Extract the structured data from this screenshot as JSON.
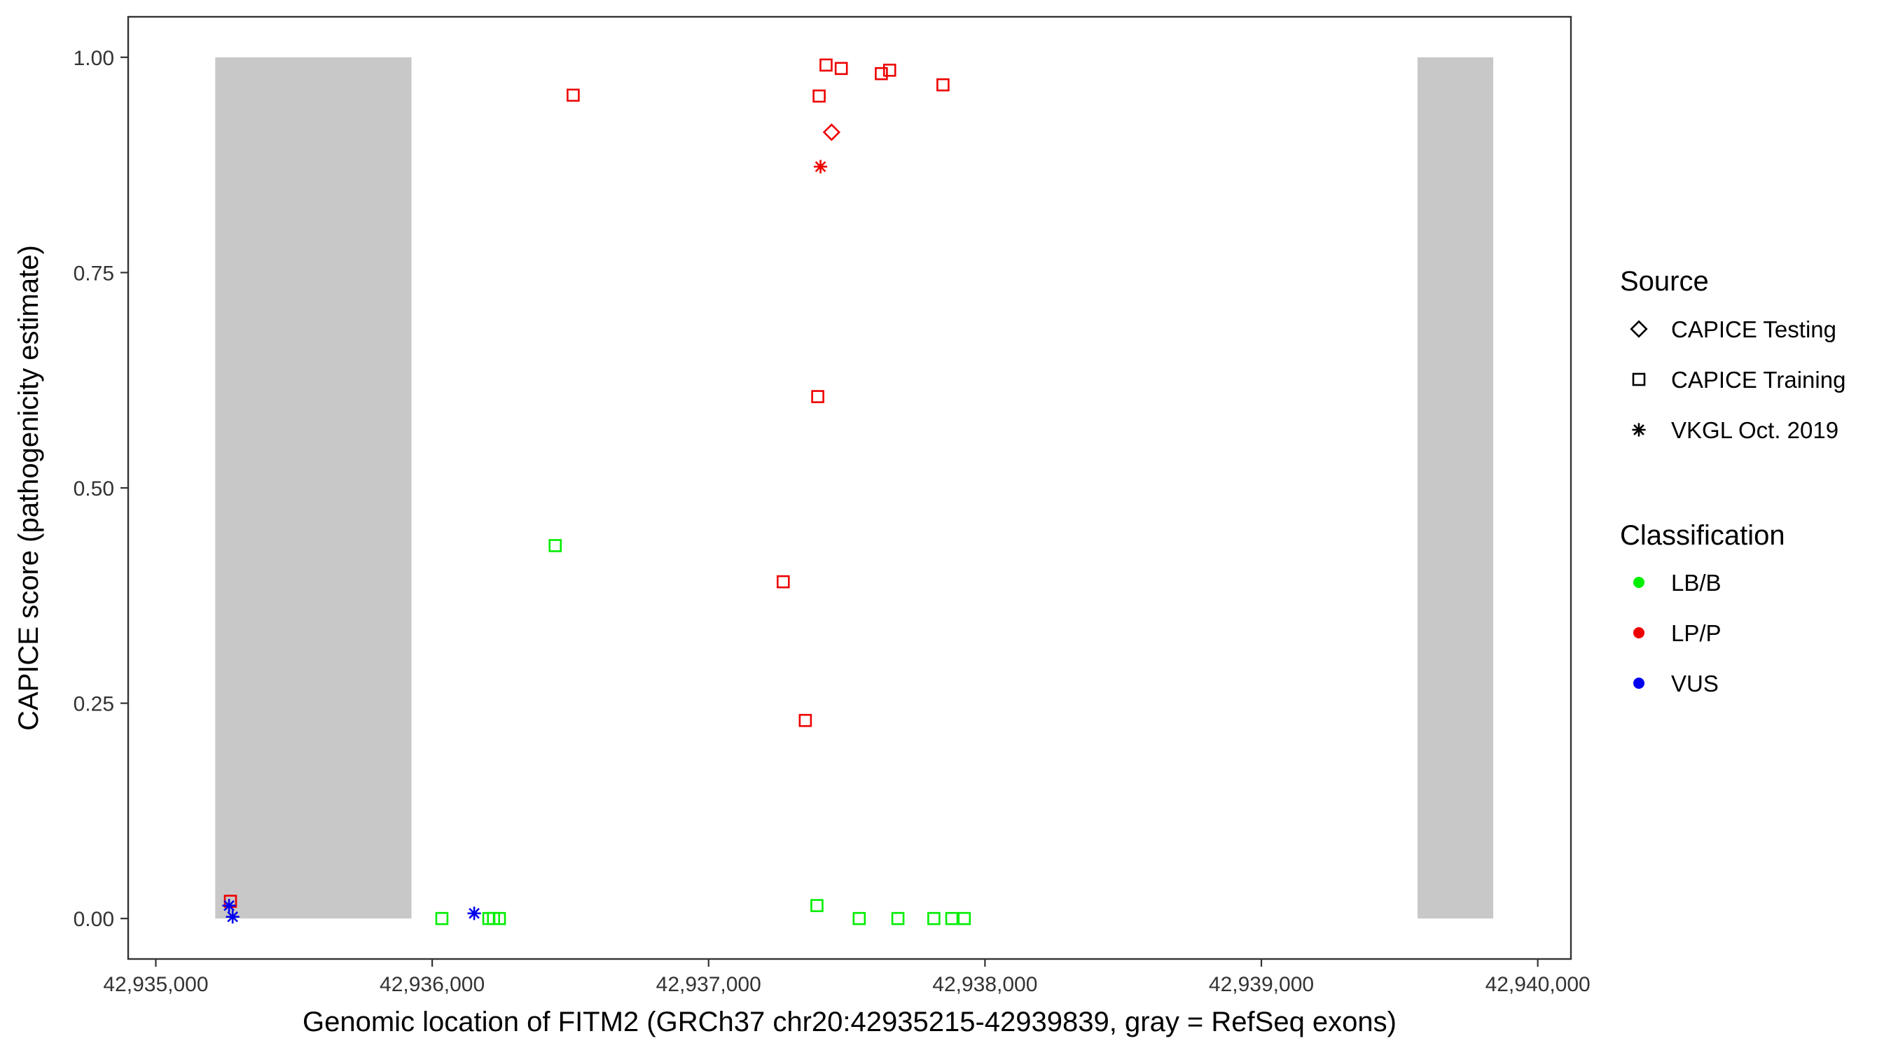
{
  "chart_data": {
    "type": "scatter",
    "title": "",
    "xlabel": "Genomic location of FITM2 (GRCh37 chr20:42935215-42939839, gray = RefSeq exons)",
    "ylabel": "CAPICE score (pathogenicity estimate)",
    "xlim": [
      42934900,
      42940120
    ],
    "ylim": [
      -0.047,
      1.047
    ],
    "x_ticks": [
      42935000,
      42936000,
      42937000,
      42938000,
      42939000,
      42940000
    ],
    "x_tick_labels": [
      "42,935,000",
      "42,936,000",
      "42,937,000",
      "42,938,000",
      "42,939,000",
      "42,940,000"
    ],
    "y_ticks": [
      0,
      0.25,
      0.5,
      0.75,
      1.0
    ],
    "y_tick_labels": [
      "0.00",
      "0.25",
      "0.50",
      "0.75",
      "1.00"
    ],
    "grid": false,
    "exons": [
      {
        "start": 42935215,
        "end": 42935925,
        "ymin": 0,
        "ymax": 1,
        "color": "#c8c8c8"
      },
      {
        "start": 42939565,
        "end": 42939839,
        "ymin": 0,
        "ymax": 1,
        "color": "#c8c8c8"
      }
    ],
    "shape_legend": {
      "title": "Source",
      "entries": [
        {
          "label": "CAPICE Testing",
          "shape": "diamond"
        },
        {
          "label": "CAPICE Training",
          "shape": "square"
        },
        {
          "label": "VKGL Oct. 2019",
          "shape": "asterisk"
        }
      ]
    },
    "color_legend": {
      "title": "Classification",
      "entries": [
        {
          "label": "LB/B",
          "color": "#00ee00"
        },
        {
          "label": "LP/P",
          "color": "#ee0000"
        },
        {
          "label": "VUS",
          "color": "#0000ee"
        }
      ]
    },
    "legend_position": "right",
    "points": [
      {
        "x": 42935270,
        "y": 0.02,
        "source": "CAPICE Training",
        "class": "LP/P"
      },
      {
        "x": 42935265,
        "y": 0.015,
        "source": "VKGL Oct. 2019",
        "class": "VUS"
      },
      {
        "x": 42935278,
        "y": 0.002,
        "source": "VKGL Oct. 2019",
        "class": "VUS"
      },
      {
        "x": 42936152,
        "y": 0.006,
        "source": "VKGL Oct. 2019",
        "class": "VUS"
      },
      {
        "x": 42936035,
        "y": 0.0,
        "source": "CAPICE Training",
        "class": "LB/B"
      },
      {
        "x": 42936205,
        "y": 0.0,
        "source": "CAPICE Training",
        "class": "LB/B"
      },
      {
        "x": 42936222,
        "y": 0.0,
        "source": "CAPICE Training",
        "class": "LB/B"
      },
      {
        "x": 42936243,
        "y": 0.0,
        "source": "CAPICE Training",
        "class": "LB/B"
      },
      {
        "x": 42936445,
        "y": 0.433,
        "source": "CAPICE Training",
        "class": "LB/B"
      },
      {
        "x": 42936510,
        "y": 0.956,
        "source": "CAPICE Training",
        "class": "LP/P"
      },
      {
        "x": 42937270,
        "y": 0.391,
        "source": "CAPICE Training",
        "class": "LP/P"
      },
      {
        "x": 42937350,
        "y": 0.23,
        "source": "CAPICE Training",
        "class": "LP/P"
      },
      {
        "x": 42937395,
        "y": 0.606,
        "source": "CAPICE Training",
        "class": "LP/P"
      },
      {
        "x": 42937400,
        "y": 0.955,
        "source": "CAPICE Training",
        "class": "LP/P"
      },
      {
        "x": 42937425,
        "y": 0.991,
        "source": "CAPICE Training",
        "class": "LP/P"
      },
      {
        "x": 42937480,
        "y": 0.987,
        "source": "CAPICE Training",
        "class": "LP/P"
      },
      {
        "x": 42937625,
        "y": 0.981,
        "source": "CAPICE Training",
        "class": "LP/P"
      },
      {
        "x": 42937655,
        "y": 0.985,
        "source": "CAPICE Training",
        "class": "LP/P"
      },
      {
        "x": 42937848,
        "y": 0.968,
        "source": "CAPICE Training",
        "class": "LP/P"
      },
      {
        "x": 42937445,
        "y": 0.913,
        "source": "CAPICE Testing",
        "class": "LP/P"
      },
      {
        "x": 42937405,
        "y": 0.873,
        "source": "VKGL Oct. 2019",
        "class": "LP/P"
      },
      {
        "x": 42937392,
        "y": 0.015,
        "source": "CAPICE Training",
        "class": "LB/B"
      },
      {
        "x": 42937545,
        "y": 0.0,
        "source": "CAPICE Training",
        "class": "LB/B"
      },
      {
        "x": 42937685,
        "y": 0.0,
        "source": "CAPICE Training",
        "class": "LB/B"
      },
      {
        "x": 42937815,
        "y": 0.0,
        "source": "CAPICE Training",
        "class": "LB/B"
      },
      {
        "x": 42937880,
        "y": 0.0,
        "source": "CAPICE Training",
        "class": "LB/B"
      },
      {
        "x": 42937925,
        "y": 0.0,
        "source": "CAPICE Training",
        "class": "LB/B"
      }
    ]
  }
}
